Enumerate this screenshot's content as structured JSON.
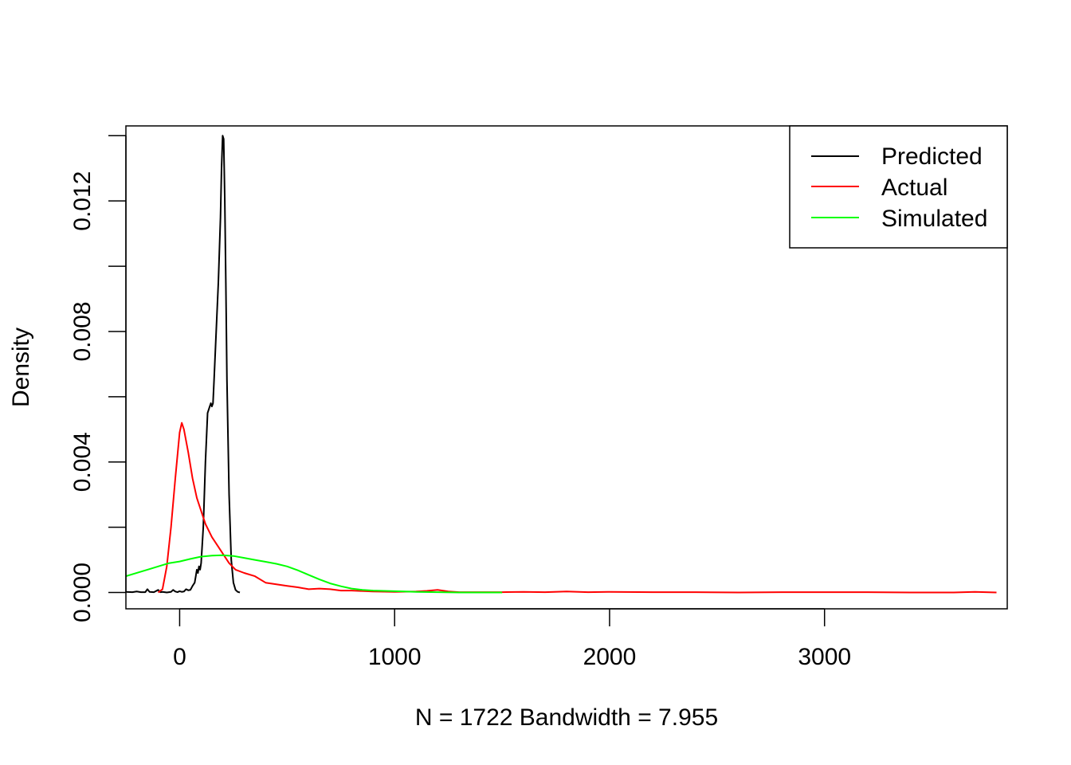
{
  "chart_data": {
    "type": "line",
    "title": "",
    "xlabel": "N = 1722   Bandwidth = 7.955",
    "ylabel": "Density",
    "xlim": [
      -250,
      3850
    ],
    "ylim": [
      -0.0005,
      0.0143
    ],
    "x_ticks": [
      0,
      1000,
      2000,
      3000
    ],
    "x_tick_labels": [
      "0",
      "1000",
      "2000",
      "3000"
    ],
    "y_ticks": [
      0,
      0.002,
      0.004,
      0.006,
      0.008,
      0.01,
      0.012,
      0.014
    ],
    "y_tick_labels": [
      "0.000",
      "",
      "0.004",
      "",
      "0.008",
      "",
      "0.012",
      ""
    ],
    "grid": false,
    "legend_position": "top-right",
    "colors": {
      "Predicted": "#000000",
      "Actual": "#ff0000",
      "Simulated": "#00ff00"
    },
    "series": [
      {
        "name": "Predicted",
        "color": "#000000",
        "x": [
          -250,
          -220,
          -200,
          -180,
          -160,
          -150,
          -140,
          -120,
          -100,
          -90,
          -80,
          -70,
          -60,
          -50,
          -40,
          -30,
          -20,
          -10,
          0,
          10,
          20,
          30,
          40,
          50,
          60,
          70,
          75,
          80,
          85,
          90,
          95,
          100,
          110,
          120,
          130,
          140,
          145,
          150,
          155,
          160,
          170,
          180,
          190,
          195,
          200,
          205,
          210,
          215,
          220,
          230,
          240,
          250,
          260,
          270,
          280
        ],
        "y": [
          2e-05,
          1e-05,
          3e-05,
          1e-05,
          1e-05,
          0.0001,
          2e-05,
          1e-05,
          8e-05,
          1e-05,
          2e-05,
          1e-05,
          0.0,
          1e-05,
          2e-05,
          8e-05,
          3e-05,
          1e-05,
          4e-05,
          2e-05,
          3e-05,
          0.0001,
          7e-05,
          8e-05,
          0.0002,
          0.0003,
          0.0005,
          0.0007,
          0.0006,
          0.0008,
          0.0007,
          0.0009,
          0.002,
          0.004,
          0.0055,
          0.0057,
          0.0058,
          0.0057,
          0.0058,
          0.0065,
          0.008,
          0.0095,
          0.0115,
          0.013,
          0.014,
          0.0139,
          0.012,
          0.0095,
          0.0065,
          0.003,
          0.001,
          0.0003,
          8e-05,
          2e-05,
          0.0
        ],
        "markup_hint": "density curve"
      },
      {
        "name": "Actual",
        "color": "#ff0000",
        "x": [
          -100,
          -80,
          -60,
          -40,
          -20,
          0,
          10,
          20,
          40,
          60,
          80,
          100,
          120,
          150,
          180,
          200,
          230,
          260,
          300,
          350,
          400,
          450,
          500,
          550,
          600,
          650,
          700,
          750,
          800,
          900,
          1000,
          1100,
          1150,
          1200,
          1250,
          1300,
          1400,
          1500,
          1600,
          1700,
          1800,
          1900,
          2000,
          2200,
          2400,
          2600,
          2800,
          3000,
          3200,
          3400,
          3600,
          3700,
          3800
        ],
        "y": [
          0.0,
          0.0001,
          0.0008,
          0.002,
          0.0035,
          0.0049,
          0.0052,
          0.005,
          0.0043,
          0.0035,
          0.0029,
          0.0025,
          0.0021,
          0.0017,
          0.0014,
          0.0012,
          0.0009,
          0.0007,
          0.0006,
          0.0005,
          0.0003,
          0.00025,
          0.0002,
          0.00016,
          0.0001,
          0.00012,
          0.0001,
          6e-05,
          6e-05,
          3e-05,
          2e-05,
          3e-05,
          5e-05,
          8e-05,
          3e-05,
          1e-05,
          1e-05,
          1e-05,
          2e-05,
          1e-05,
          3e-05,
          1e-05,
          2e-05,
          1e-05,
          1e-05,
          0.0,
          1e-05,
          1e-05,
          1e-05,
          0.0,
          0.0,
          2e-05,
          0.0
        ],
        "markup_hint": "density curve"
      },
      {
        "name": "Simulated",
        "color": "#00ff00",
        "x": [
          -250,
          -150,
          -50,
          0,
          50,
          100,
          150,
          200,
          250,
          300,
          350,
          400,
          450,
          500,
          550,
          600,
          650,
          700,
          750,
          800,
          850,
          900,
          1000,
          1100,
          1200,
          1300,
          1400,
          1500
        ],
        "y": [
          0.0005,
          0.0007,
          0.0009,
          0.00095,
          0.00103,
          0.0011,
          0.00113,
          0.00114,
          0.00112,
          0.00106,
          0.001,
          0.00094,
          0.00088,
          0.0008,
          0.00068,
          0.00054,
          0.0004,
          0.00028,
          0.00019,
          0.00012,
          8e-05,
          6e-05,
          4e-05,
          2e-05,
          1e-05,
          0.0,
          0.0,
          0.0
        ],
        "markup_hint": "density curve"
      }
    ]
  }
}
